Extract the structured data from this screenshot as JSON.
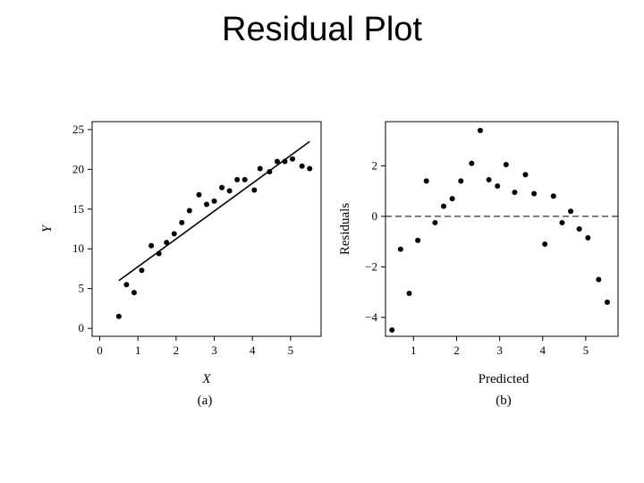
{
  "slide": {
    "title": "Residual Plot"
  },
  "chart_data": [
    {
      "type": "scatter",
      "xlabel": "X",
      "ylabel": "Y",
      "panel_label": "(a)",
      "xlim": [
        -0.2,
        5.8
      ],
      "ylim": [
        -1,
        26
      ],
      "xticks": [
        0,
        1,
        2,
        3,
        4,
        5
      ],
      "yticks": [
        0,
        5,
        10,
        15,
        20,
        25
      ],
      "grid": false,
      "series": [
        {
          "x": [
            0.5,
            0.7,
            0.9,
            1.1,
            1.35,
            1.55,
            1.75,
            1.95,
            2.15,
            2.35,
            2.6,
            2.8,
            3.0,
            3.2,
            3.4,
            3.6,
            3.8,
            4.05,
            4.2,
            4.45,
            4.65,
            4.85,
            5.05,
            5.3,
            5.5
          ],
          "y": [
            1.5,
            5.5,
            4.5,
            7.3,
            10.4,
            9.4,
            10.8,
            11.9,
            13.3,
            14.8,
            16.8,
            15.6,
            16.0,
            17.7,
            17.3,
            18.7,
            18.7,
            17.4,
            20.1,
            19.7,
            21.0,
            21.0,
            21.3,
            20.4,
            20.1
          ]
        }
      ],
      "fit_line": {
        "x": [
          0.5,
          5.5
        ],
        "y": [
          6.0,
          23.5
        ]
      }
    },
    {
      "type": "scatter",
      "xlabel": "Predicted",
      "ylabel": "Residuals",
      "panel_label": "(b)",
      "xlim": [
        0.35,
        5.75
      ],
      "ylim": [
        -4.75,
        3.75
      ],
      "xticks": [
        1,
        2,
        3,
        4,
        5
      ],
      "yticks": [
        -4,
        -2,
        0,
        2
      ],
      "ytick_labels": [
        "−4",
        "−2",
        "0",
        "2"
      ],
      "grid": false,
      "series": [
        {
          "x": [
            0.5,
            0.7,
            0.9,
            1.1,
            1.3,
            1.5,
            1.7,
            1.9,
            2.1,
            2.35,
            2.55,
            2.75,
            2.95,
            3.15,
            3.35,
            3.6,
            3.8,
            4.05,
            4.25,
            4.45,
            4.65,
            4.85,
            5.05,
            5.3,
            5.5
          ],
          "y": [
            -4.5,
            -1.3,
            -3.05,
            -0.95,
            1.4,
            -0.25,
            0.4,
            0.7,
            1.4,
            2.1,
            3.4,
            1.45,
            1.2,
            2.05,
            0.95,
            1.65,
            0.9,
            -1.1,
            0.8,
            -0.25,
            0.2,
            -0.5,
            -0.85,
            -2.5,
            -3.4
          ]
        }
      ],
      "reference_line": {
        "y": 0,
        "style": "dashed"
      }
    }
  ]
}
